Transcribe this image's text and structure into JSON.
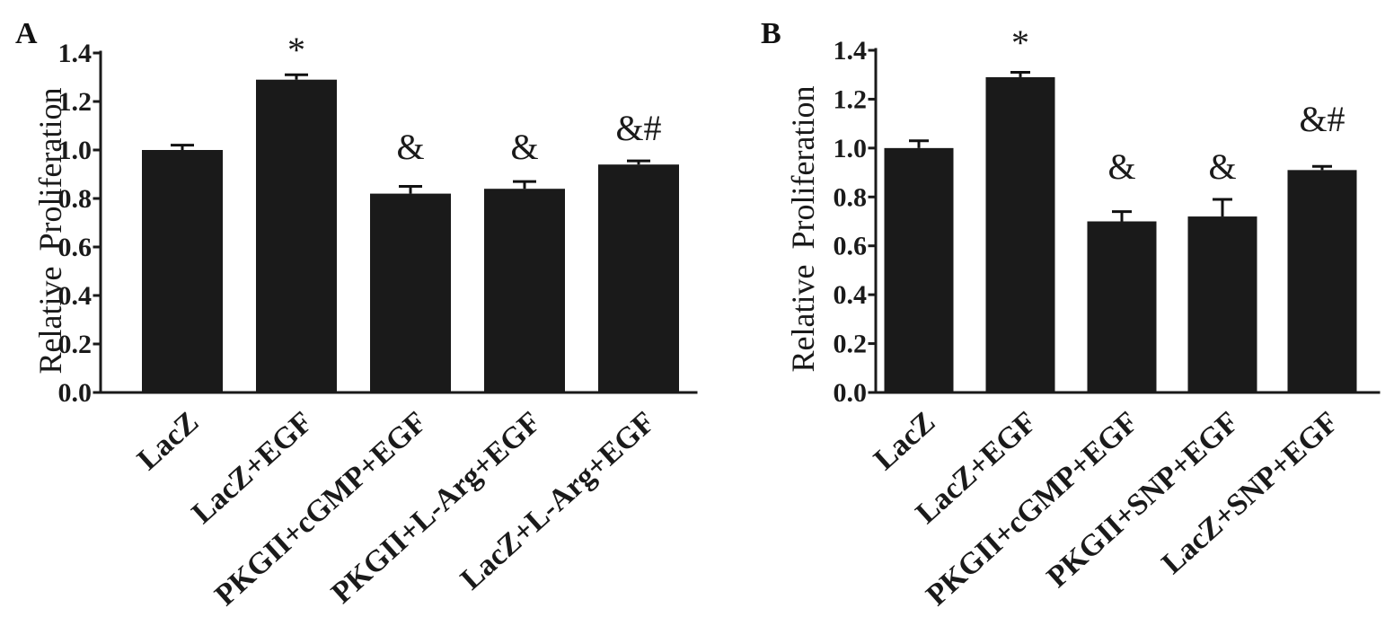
{
  "chart_data": [
    {
      "panel_label": "A",
      "type": "bar",
      "categories": [
        "LacZ",
        "LacZ+EGF",
        "PKGII+cGMP+EGF",
        "PKGII+L-Arg+EGF",
        "LacZ+L-Arg+EGF"
      ],
      "values": [
        1.0,
        1.29,
        0.82,
        0.84,
        0.94
      ],
      "errors": [
        0.02,
        0.02,
        0.03,
        0.03,
        0.015
      ],
      "annotations": [
        "",
        "*",
        "&",
        "&",
        "&#"
      ],
      "ylabel": "Relative Proliferation",
      "ylim": [
        0,
        1.4
      ],
      "ytick_labels": [
        "0.0",
        "0.2",
        "0.4",
        "0.6",
        "0.8",
        "1.0",
        "1.2",
        "1.4"
      ],
      "grid": false,
      "legend": false,
      "bar_color": "#1a1a1a"
    },
    {
      "panel_label": "B",
      "type": "bar",
      "categories": [
        "LacZ",
        "LacZ+EGF",
        "PKGII+cGMP+EGF",
        "PKGII+SNP+EGF",
        "LacZ+SNP+EGF"
      ],
      "values": [
        1.0,
        1.29,
        0.7,
        0.72,
        0.91
      ],
      "errors": [
        0.03,
        0.02,
        0.04,
        0.07,
        0.015
      ],
      "annotations": [
        "",
        "*",
        "&",
        "&",
        "&#"
      ],
      "ylabel": "Relative Proliferation",
      "ylim": [
        0,
        1.4
      ],
      "ytick_labels": [
        "0.0",
        "0.2",
        "0.4",
        "0.6",
        "0.8",
        "1.0",
        "1.2",
        "1.4"
      ],
      "grid": false,
      "legend": false,
      "bar_color": "#1a1a1a"
    }
  ]
}
